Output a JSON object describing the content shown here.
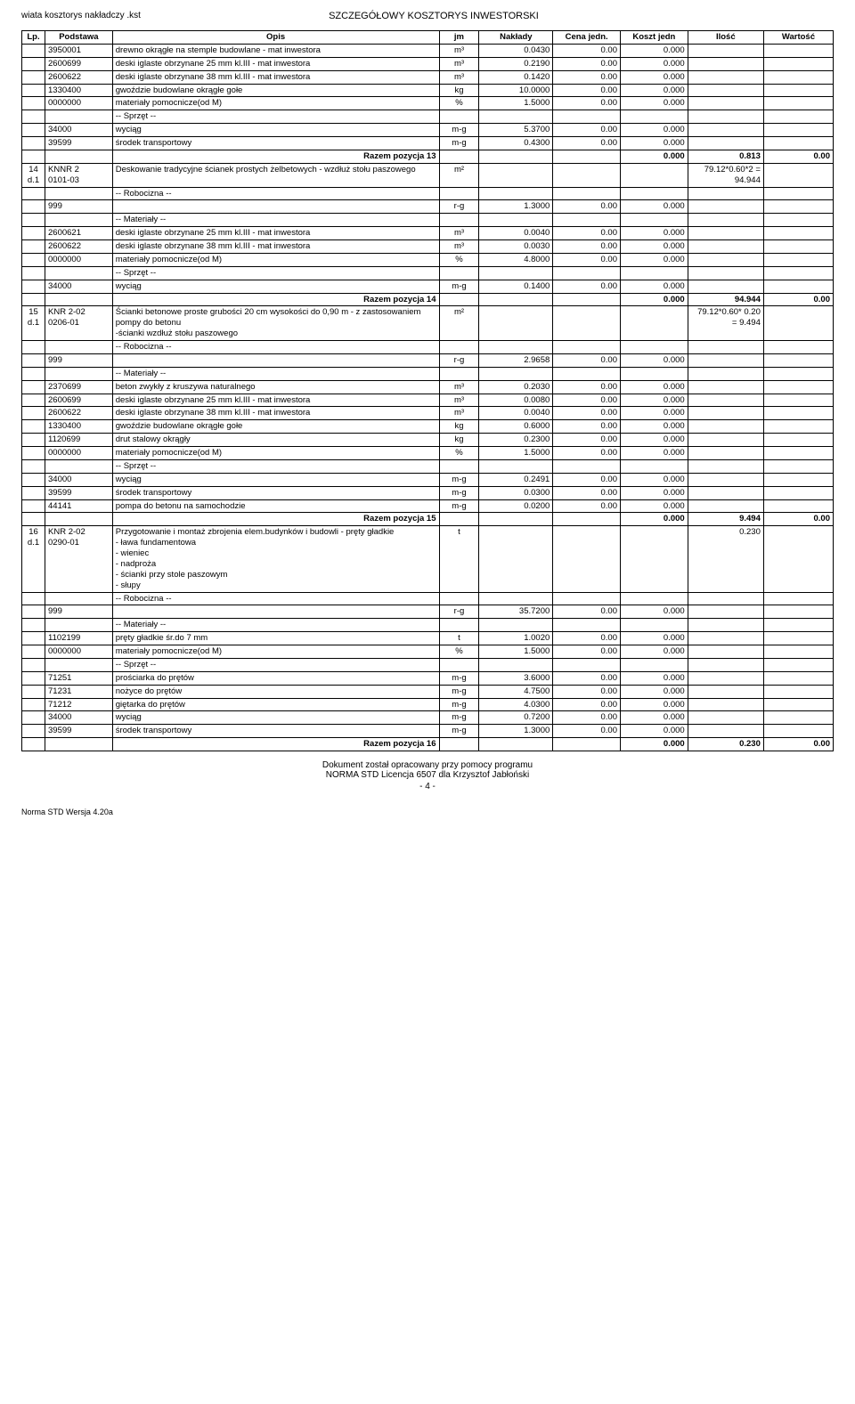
{
  "header": {
    "ref": "wiata kosztorys nakładczy .kst",
    "title": "SZCZEGÓŁOWY KOSZTORYS INWESTORSKI"
  },
  "columns": {
    "lp": "Lp.",
    "podstawa": "Podstawa",
    "opis": "Opis",
    "jm": "jm",
    "naklady": "Nakłady",
    "cena": "Cena jedn.",
    "koszt": "Koszt jedn",
    "ilosc": "Ilość",
    "wartosc": "Wartość"
  },
  "blocks": [
    {
      "lp": "",
      "podstawa": "",
      "head_opis": "",
      "ilosc": "",
      "rows": [
        {
          "podstawa": "3950001",
          "opis": "drewno okrągłe na stemple budowlane - mat inwestora",
          "jm": "m³",
          "nak": "0.0430",
          "cena": "0.00",
          "kj": "0.000"
        },
        {
          "podstawa": "2600699",
          "opis": "deski iglaste obrzynane 25 mm kl.III - mat inwestora",
          "jm": "m³",
          "nak": "0.2190",
          "cena": "0.00",
          "kj": "0.000"
        },
        {
          "podstawa": "2600622",
          "opis": "deski iglaste obrzynane 38 mm kl.III - mat inwestora",
          "jm": "m³",
          "nak": "0.1420",
          "cena": "0.00",
          "kj": "0.000"
        },
        {
          "podstawa": "1330400",
          "opis": "gwoździe budowlane okrągłe gołe",
          "jm": "kg",
          "nak": "10.0000",
          "cena": "0.00",
          "kj": "0.000"
        },
        {
          "podstawa": "0000000",
          "opis": "materiały pomocnicze(od M)",
          "jm": "%",
          "nak": "1.5000",
          "cena": "0.00",
          "kj": "0.000"
        },
        {
          "section": "-- Sprzęt --"
        },
        {
          "podstawa": "34000",
          "opis": "wyciąg",
          "jm": "m-g",
          "nak": "5.3700",
          "cena": "0.00",
          "kj": "0.000"
        },
        {
          "podstawa": "39599",
          "opis": "środek transportowy",
          "jm": "m-g",
          "nak": "0.4300",
          "cena": "0.00",
          "kj": "0.000"
        }
      ],
      "razem": {
        "label": "Razem pozycja 13",
        "kj": "0.000",
        "ilosc": "0.813",
        "wartosc": "0.00"
      }
    },
    {
      "lp": "14 d.1",
      "podstawa": "KNNR 2\n0101-03",
      "head_opis": "Deskowanie tradycyjne ścianek prostych żelbetowych - wzdłuż stołu paszowego",
      "head_jm": "m²",
      "ilosc": "79.12*0.60*2 = 94.944",
      "rows": [
        {
          "section": "-- Robocizna --"
        },
        {
          "podstawa": "999",
          "opis": "",
          "jm": "r-g",
          "nak": "1.3000",
          "cena": "0.00",
          "kj": "0.000"
        },
        {
          "section": "-- Materiały --"
        },
        {
          "podstawa": "2600621",
          "opis": "deski iglaste obrzynane 25 mm kl.III - mat inwestora",
          "jm": "m³",
          "nak": "0.0040",
          "cena": "0.00",
          "kj": "0.000"
        },
        {
          "podstawa": "2600622",
          "opis": "deski iglaste obrzynane 38 mm kl.III - mat inwestora",
          "jm": "m³",
          "nak": "0.0030",
          "cena": "0.00",
          "kj": "0.000"
        },
        {
          "podstawa": "0000000",
          "opis": "materiały pomocnicze(od M)",
          "jm": "%",
          "nak": "4.8000",
          "cena": "0.00",
          "kj": "0.000"
        },
        {
          "section": "-- Sprzęt --"
        },
        {
          "podstawa": "34000",
          "opis": "wyciąg",
          "jm": "m-g",
          "nak": "0.1400",
          "cena": "0.00",
          "kj": "0.000"
        }
      ],
      "razem": {
        "label": "Razem pozycja 14",
        "kj": "0.000",
        "ilosc": "94.944",
        "wartosc": "0.00"
      }
    },
    {
      "lp": "15 d.1",
      "podstawa": "KNR 2-02\n0206-01",
      "head_opis": "Ścianki betonowe proste grubości 20 cm wysokości do 0,90 m - z zastosowaniem pompy do betonu\n-ścianki wzdłuż stołu paszowego",
      "head_jm": "m²",
      "ilosc": "79.12*0.60* 0.20 = 9.494",
      "rows": [
        {
          "section": "-- Robocizna --"
        },
        {
          "podstawa": "999",
          "opis": "",
          "jm": "r-g",
          "nak": "2.9658",
          "cena": "0.00",
          "kj": "0.000"
        },
        {
          "section": "-- Materiały --"
        },
        {
          "podstawa": "2370699",
          "opis": "beton zwykły z kruszywa naturalnego",
          "jm": "m³",
          "nak": "0.2030",
          "cena": "0.00",
          "kj": "0.000"
        },
        {
          "podstawa": "2600699",
          "opis": "deski iglaste obrzynane 25 mm kl.III - mat inwestora",
          "jm": "m³",
          "nak": "0.0080",
          "cena": "0.00",
          "kj": "0.000"
        },
        {
          "podstawa": "2600622",
          "opis": "deski iglaste obrzynane 38 mm kl.III - mat inwestora",
          "jm": "m³",
          "nak": "0.0040",
          "cena": "0.00",
          "kj": "0.000"
        },
        {
          "podstawa": "1330400",
          "opis": "gwoździe budowlane okrągłe gołe",
          "jm": "kg",
          "nak": "0.6000",
          "cena": "0.00",
          "kj": "0.000"
        },
        {
          "podstawa": "1120699",
          "opis": "drut stalowy okrągły",
          "jm": "kg",
          "nak": "0.2300",
          "cena": "0.00",
          "kj": "0.000"
        },
        {
          "podstawa": "0000000",
          "opis": "materiały pomocnicze(od M)",
          "jm": "%",
          "nak": "1.5000",
          "cena": "0.00",
          "kj": "0.000"
        },
        {
          "section": "-- Sprzęt --"
        },
        {
          "podstawa": "34000",
          "opis": "wyciąg",
          "jm": "m-g",
          "nak": "0.2491",
          "cena": "0.00",
          "kj": "0.000"
        },
        {
          "podstawa": "39599",
          "opis": "środek transportowy",
          "jm": "m-g",
          "nak": "0.0300",
          "cena": "0.00",
          "kj": "0.000"
        },
        {
          "podstawa": "44141",
          "opis": "pompa do betonu na samochodzie",
          "jm": "m-g",
          "nak": "0.0200",
          "cena": "0.00",
          "kj": "0.000"
        }
      ],
      "razem": {
        "label": "Razem pozycja 15",
        "kj": "0.000",
        "ilosc": "9.494",
        "wartosc": "0.00"
      }
    },
    {
      "lp": "16 d.1",
      "podstawa": "KNR 2-02\n0290-01",
      "head_opis": "Przygotowanie i montaż zbrojenia elem.budynków i budowli - pręty gładkie\n- ława fundamentowa\n- wieniec\n- nadproża\n- ścianki przy stole paszowym\n- słupy",
      "head_jm": "t",
      "ilosc": "0.230",
      "rows": [
        {
          "section": "-- Robocizna --"
        },
        {
          "podstawa": "999",
          "opis": "",
          "jm": "r-g",
          "nak": "35.7200",
          "cena": "0.00",
          "kj": "0.000"
        },
        {
          "section": "-- Materiały --"
        },
        {
          "podstawa": "1102199",
          "opis": "pręty gładkie śr.do 7 mm",
          "jm": "t",
          "nak": "1.0020",
          "cena": "0.00",
          "kj": "0.000"
        },
        {
          "podstawa": "0000000",
          "opis": "materiały pomocnicze(od M)",
          "jm": "%",
          "nak": "1.5000",
          "cena": "0.00",
          "kj": "0.000"
        },
        {
          "section": "-- Sprzęt --"
        },
        {
          "podstawa": "71251",
          "opis": "prościarka do prętów",
          "jm": "m-g",
          "nak": "3.6000",
          "cena": "0.00",
          "kj": "0.000"
        },
        {
          "podstawa": "71231",
          "opis": "nożyce do prętów",
          "jm": "m-g",
          "nak": "4.7500",
          "cena": "0.00",
          "kj": "0.000"
        },
        {
          "podstawa": "71212",
          "opis": "giętarka do prętów",
          "jm": "m-g",
          "nak": "4.0300",
          "cena": "0.00",
          "kj": "0.000"
        },
        {
          "podstawa": "34000",
          "opis": "wyciąg",
          "jm": "m-g",
          "nak": "0.7200",
          "cena": "0.00",
          "kj": "0.000"
        },
        {
          "podstawa": "39599",
          "opis": "środek transportowy",
          "jm": "m-g",
          "nak": "1.3000",
          "cena": "0.00",
          "kj": "0.000"
        }
      ],
      "razem": {
        "label": "Razem pozycja 16",
        "kj": "0.000",
        "ilosc": "0.230",
        "wartosc": "0.00"
      }
    }
  ],
  "footer": {
    "line1": "Dokument został opracowany przy pomocy programu",
    "line2": "NORMA STD Licencja 6507 dla Krzysztof Jabłoński",
    "page": "- 4 -",
    "bottom": "Norma STD Wersja 4.20a"
  }
}
